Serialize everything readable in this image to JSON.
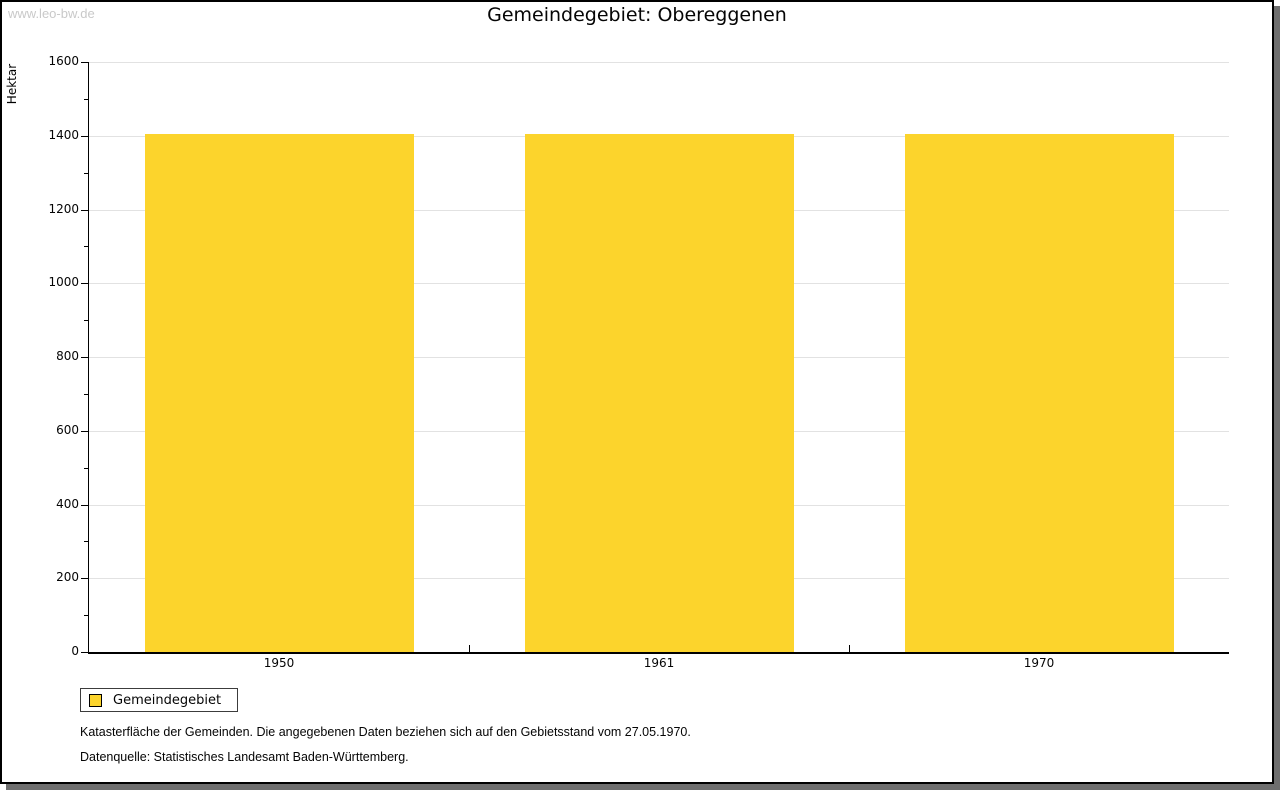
{
  "watermark": "www.leo-bw.de",
  "title": "Gemeindegebiet: Obereggenen",
  "legend": {
    "label": "Gemeindegebiet"
  },
  "footnotes": {
    "line1": "Katasterfläche der Gemeinden. Die angegebenen Daten beziehen sich auf den Gebietsstand vom 27.05.1970.",
    "line2": "Datenquelle: Statistisches Landesamt Baden-Württemberg."
  },
  "colors": {
    "bar": "#fcd42c",
    "grid": "#e2e2e2",
    "watermark": "#c9c9c9",
    "frame_shadow": "#6e6e6e",
    "legend_border": "#3c3c3c"
  },
  "chart_data": {
    "type": "bar",
    "title": "Gemeindegebiet: Obereggenen",
    "categories": [
      "1950",
      "1961",
      "1970"
    ],
    "series": [
      {
        "name": "Gemeindegebiet",
        "values": [
          1404,
          1404,
          1404
        ]
      }
    ],
    "xlabel": "",
    "ylabel": "Hektar",
    "ylim": [
      0,
      1600
    ],
    "ytick_major": 200,
    "ytick_minor": 100,
    "ytick_labels": [
      "0",
      "200",
      "400",
      "600",
      "800",
      "1000",
      "1200",
      "1400",
      "1600"
    ],
    "grid": true,
    "legend_position": "bottom-left",
    "bar_color": "#fcd42c"
  }
}
